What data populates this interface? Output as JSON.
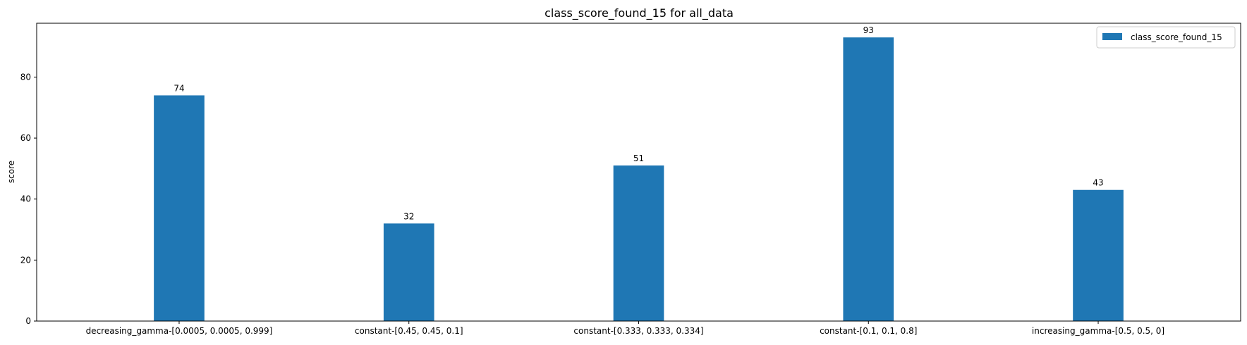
{
  "chart_data": {
    "type": "bar",
    "title": "class_score_found_15 for all_data",
    "xlabel": "",
    "ylabel": "score",
    "categories": [
      "decreasing_gamma-[0.0005, 0.0005, 0.999]",
      "constant-[0.45, 0.45, 0.1]",
      "constant-[0.333, 0.333, 0.334]",
      "constant-[0.1, 0.1, 0.8]",
      "increasing_gamma-[0.5, 0.5, 0]"
    ],
    "series": [
      {
        "name": "class_score_found_15",
        "values": [
          74,
          32,
          51,
          93,
          43
        ],
        "color": "#1f77b4"
      }
    ],
    "data_labels": [
      "74",
      "32",
      "51",
      "93",
      "43"
    ],
    "ylim": [
      0,
      97.65
    ],
    "yticks": [
      0,
      20,
      40,
      60,
      80
    ],
    "grid": false,
    "legend_position": "top-right"
  }
}
